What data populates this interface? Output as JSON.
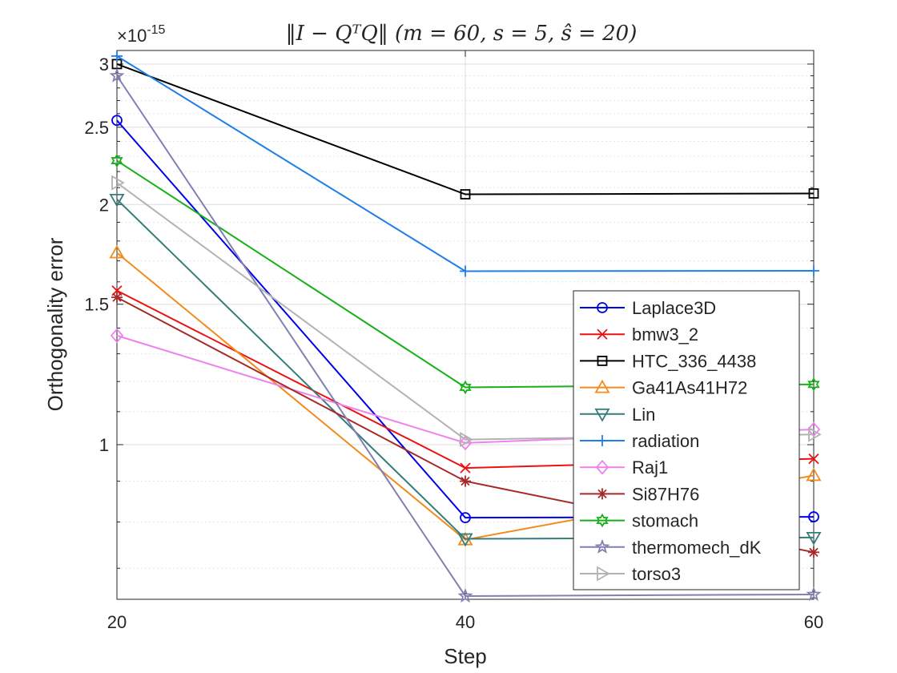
{
  "chart_data": {
    "type": "line",
    "title": "‖I − QᵀQ‖ (m = 60,  s = 5,  ŝ = 20)",
    "xlabel": "Step",
    "ylabel": "Orthogonality error",
    "y_exponent_label": "×10",
    "y_exponent_power": "-15",
    "y_scale": "log",
    "x": [
      20,
      40,
      60
    ],
    "xlim": [
      20,
      60
    ],
    "ylim": [
      0.64,
      3.12
    ],
    "x_ticks": [
      20,
      40,
      60
    ],
    "x_tick_labels": [
      "20",
      "40",
      "60"
    ],
    "y_ticks": [
      1,
      1.5,
      2,
      2.5,
      3
    ],
    "y_tick_labels": [
      "1",
      "1.5",
      "2",
      "2.5",
      "3"
    ],
    "grid": true,
    "legend_position": "bottom-right",
    "series": [
      {
        "name": "Laplace3D",
        "values": [
          2.55,
          0.81,
          0.812
        ],
        "color": "#0000ee",
        "marker": "circle"
      },
      {
        "name": "bmw3_2",
        "values": [
          1.56,
          0.935,
          0.96
        ],
        "color": "#ee1111",
        "marker": "x"
      },
      {
        "name": "HTC_336_4438",
        "values": [
          3.0,
          2.06,
          2.065
        ],
        "color": "#000000",
        "marker": "square"
      },
      {
        "name": "Ga41As41H72",
        "values": [
          1.74,
          0.76,
          0.915
        ],
        "color": "#f28b1c",
        "marker": "triangle-up"
      },
      {
        "name": "Lin",
        "values": [
          2.03,
          0.762,
          0.765
        ],
        "color": "#347d7a",
        "marker": "triangle-down"
      },
      {
        "name": "radiation",
        "values": [
          3.07,
          1.65,
          1.652
        ],
        "color": "#1f7fe8",
        "marker": "plus"
      },
      {
        "name": "Raj1",
        "values": [
          1.37,
          1.005,
          1.045
        ],
        "color": "#ee82ee",
        "marker": "diamond"
      },
      {
        "name": "Si87H76",
        "values": [
          1.53,
          0.9,
          0.733
        ],
        "color": "#a52a2a",
        "marker": "asterisk"
      },
      {
        "name": "stomach",
        "values": [
          2.27,
          1.18,
          1.19
        ],
        "color": "#18b018",
        "marker": "hexagram"
      },
      {
        "name": "thermomech_dK",
        "values": [
          2.9,
          0.646,
          0.649
        ],
        "color": "#8080b3",
        "marker": "pentagram"
      },
      {
        "name": "torso3",
        "values": [
          2.13,
          1.015,
          1.03
        ],
        "color": "#b3b3b3",
        "marker": "triangle-right"
      }
    ]
  }
}
